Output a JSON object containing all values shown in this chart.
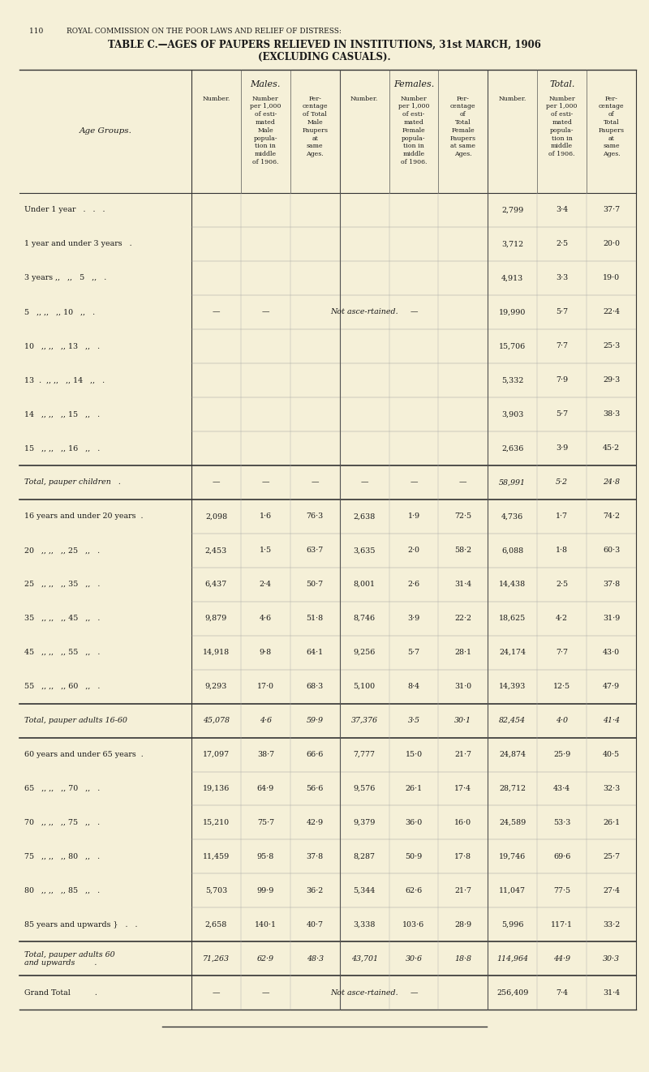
{
  "page_header": "110          ROYAL COMMISSION ON THE POOR LAWS AND RELIEF OF DISTRESS:",
  "title_line1": "TABLE C.—AGES OF PAUPERS RELIEVED IN INSTITUTIONS, 31st MARCH, 1906",
  "title_line2": "(EXCLUDING CASUALS).",
  "bg_color": "#f5f0d8",
  "text_color": "#1a1a1a",
  "col_header_males": "Males.",
  "col_header_females": "Females.",
  "col_header_total": "Total.",
  "age_group_col_header": "Age Groups.",
  "rows": [
    {
      "label": "Under 1 year   .   .   .",
      "m_num": "",
      "m_per1000": "",
      "m_pct": "",
      "f_num": "",
      "f_per1000": "",
      "f_pct": "",
      "t_num": "2,799",
      "t_per1000": "3·4",
      "t_pct": "37·7",
      "italic": false,
      "separator_before": false,
      "separator_after": false,
      "span_note": false
    },
    {
      "label": "1 year and under 3 years   .",
      "m_num": "",
      "m_per1000": "",
      "m_pct": "",
      "f_num": "",
      "f_per1000": "",
      "f_pct": "",
      "t_num": "3,712",
      "t_per1000": "2·5",
      "t_pct": "20·0",
      "italic": false,
      "separator_before": false,
      "separator_after": false,
      "span_note": false
    },
    {
      "label": "3 years ,,   ,,   5   ,,   .",
      "m_num": "",
      "m_per1000": "",
      "m_pct": "",
      "f_num": "",
      "f_per1000": "",
      "f_pct": "",
      "t_num": "4,913",
      "t_per1000": "3·3",
      "t_pct": "19·0",
      "italic": false,
      "separator_before": false,
      "separator_after": false,
      "span_note": false
    },
    {
      "label": "5   ,, ,,   ,, 10   ,,   .",
      "m_num": "—",
      "m_per1000": "—",
      "m_pct": "",
      "f_num": "—",
      "f_per1000": "—",
      "f_pct": "",
      "t_num": "19,990",
      "t_per1000": "5·7",
      "t_pct": "22·4",
      "italic": false,
      "separator_before": false,
      "separator_after": false,
      "span_note": true
    },
    {
      "label": "10   ,, ,,   ,, 13   ,,   .",
      "m_num": "",
      "m_per1000": "",
      "m_pct": "",
      "f_num": "",
      "f_per1000": "",
      "f_pct": "",
      "t_num": "15,706",
      "t_per1000": "7·7",
      "t_pct": "25·3",
      "italic": false,
      "separator_before": false,
      "separator_after": false,
      "span_note": false
    },
    {
      "label": "13  .  ,, ,,   ,, 14   ,,   .",
      "m_num": "",
      "m_per1000": "",
      "m_pct": "",
      "f_num": "",
      "f_per1000": "",
      "f_pct": "",
      "t_num": "5,332",
      "t_per1000": "7·9",
      "t_pct": "29·3",
      "italic": false,
      "separator_before": false,
      "separator_after": false,
      "span_note": false
    },
    {
      "label": "14   ,, ,,   ,, 15   ,,   .",
      "m_num": "",
      "m_per1000": "",
      "m_pct": "",
      "f_num": "",
      "f_per1000": "",
      "f_pct": "",
      "t_num": "3,903",
      "t_per1000": "5·7",
      "t_pct": "38·3",
      "italic": false,
      "separator_before": false,
      "separator_after": false,
      "span_note": false
    },
    {
      "label": "15   ,, ,,   ,, 16   ,,   .",
      "m_num": "",
      "m_per1000": "",
      "m_pct": "",
      "f_num": "",
      "f_per1000": "",
      "f_pct": "",
      "t_num": "2,636",
      "t_per1000": "3·9",
      "t_pct": "45·2",
      "italic": false,
      "separator_before": false,
      "separator_after": false,
      "span_note": false
    },
    {
      "label": "Total, pauper children   .",
      "m_num": "—",
      "m_per1000": "—",
      "m_pct": "—",
      "f_num": "—",
      "f_per1000": "—",
      "f_pct": "—",
      "t_num": "58,991",
      "t_per1000": "5·2",
      "t_pct": "24·8",
      "italic": true,
      "separator_before": true,
      "separator_after": true,
      "span_note": false
    },
    {
      "label": "16 years and under 20 years  .",
      "m_num": "2,098",
      "m_per1000": "1·6",
      "m_pct": "76·3",
      "f_num": "2,638",
      "f_per1000": "1·9",
      "f_pct": "72·5",
      "t_num": "4,736",
      "t_per1000": "1·7",
      "t_pct": "74·2",
      "italic": false,
      "separator_before": false,
      "separator_after": false,
      "span_note": false
    },
    {
      "label": "20   ,, ,,   ,, 25   ,,   .",
      "m_num": "2,453",
      "m_per1000": "1·5",
      "m_pct": "63·7",
      "f_num": "3,635",
      "f_per1000": "2·0",
      "f_pct": "58·2",
      "t_num": "6,088",
      "t_per1000": "1·8",
      "t_pct": "60·3",
      "italic": false,
      "separator_before": false,
      "separator_after": false,
      "span_note": false
    },
    {
      "label": "25   ,, ,,   ,, 35   ,,   .",
      "m_num": "6,437",
      "m_per1000": "2·4",
      "m_pct": "50·7",
      "f_num": "8,001",
      "f_per1000": "2·6",
      "f_pct": "31·4",
      "t_num": "14,438",
      "t_per1000": "2·5",
      "t_pct": "37·8",
      "italic": false,
      "separator_before": false,
      "separator_after": false,
      "span_note": false
    },
    {
      "label": "35   ,, ,,   ,, 45   ,,   .",
      "m_num": "9,879",
      "m_per1000": "4·6",
      "m_pct": "51·8",
      "f_num": "8,746",
      "f_per1000": "3·9",
      "f_pct": "22·2",
      "t_num": "18,625",
      "t_per1000": "4·2",
      "t_pct": "31·9",
      "italic": false,
      "separator_before": false,
      "separator_after": false,
      "span_note": false
    },
    {
      "label": "45   ,, ,,   ,, 55   ,,   .",
      "m_num": "14,918",
      "m_per1000": "9·8",
      "m_pct": "64·1",
      "f_num": "9,256",
      "f_per1000": "5·7",
      "f_pct": "28·1",
      "t_num": "24,174",
      "t_per1000": "7·7",
      "t_pct": "43·0",
      "italic": false,
      "separator_before": false,
      "separator_after": false,
      "span_note": false
    },
    {
      "label": "55   ,, ,,   ,, 60   ,,   .",
      "m_num": "9,293",
      "m_per1000": "17·0",
      "m_pct": "68·3",
      "f_num": "5,100",
      "f_per1000": "8·4",
      "f_pct": "31·0",
      "t_num": "14,393",
      "t_per1000": "12·5",
      "t_pct": "47·9",
      "italic": false,
      "separator_before": false,
      "separator_after": false,
      "span_note": false
    },
    {
      "label": "Total, pauper adults 16-60",
      "m_num": "45,078",
      "m_per1000": "4·6",
      "m_pct": "59·9",
      "f_num": "37,376",
      "f_per1000": "3·5",
      "f_pct": "30·1",
      "t_num": "82,454",
      "t_per1000": "4·0",
      "t_pct": "41·4",
      "italic": true,
      "separator_before": true,
      "separator_after": true,
      "span_note": false
    },
    {
      "label": "60 years and under 65 years  .",
      "m_num": "17,097",
      "m_per1000": "38·7",
      "m_pct": "66·6",
      "f_num": "7,777",
      "f_per1000": "15·0",
      "f_pct": "21·7",
      "t_num": "24,874",
      "t_per1000": "25·9",
      "t_pct": "40·5",
      "italic": false,
      "separator_before": false,
      "separator_after": false,
      "span_note": false
    },
    {
      "label": "65   ,, ,,   ,, 70   ,,   .",
      "m_num": "19,136",
      "m_per1000": "64·9",
      "m_pct": "56·6",
      "f_num": "9,576",
      "f_per1000": "26·1",
      "f_pct": "17·4",
      "t_num": "28,712",
      "t_per1000": "43·4",
      "t_pct": "32·3",
      "italic": false,
      "separator_before": false,
      "separator_after": false,
      "span_note": false
    },
    {
      "label": "70   ,, ,,   ,, 75   ,,   .",
      "m_num": "15,210",
      "m_per1000": "75·7",
      "m_pct": "42·9",
      "f_num": "9,379",
      "f_per1000": "36·0",
      "f_pct": "16·0",
      "t_num": "24,589",
      "t_per1000": "53·3",
      "t_pct": "26·1",
      "italic": false,
      "separator_before": false,
      "separator_after": false,
      "span_note": false
    },
    {
      "label": "75   ,, ,,   ,, 80   ,,   .",
      "m_num": "11,459",
      "m_per1000": "95·8",
      "m_pct": "37·8",
      "f_num": "8,287",
      "f_per1000": "50·9",
      "f_pct": "17·8",
      "t_num": "19,746",
      "t_per1000": "69·6",
      "t_pct": "25·7",
      "italic": false,
      "separator_before": false,
      "separator_after": false,
      "span_note": false
    },
    {
      "label": "80   ,, ,,   ,, 85   ,,   .",
      "m_num": "5,703",
      "m_per1000": "99·9",
      "m_pct": "36·2",
      "f_num": "5,344",
      "f_per1000": "62·6",
      "f_pct": "21·7",
      "t_num": "11,047",
      "t_per1000": "77·5",
      "t_pct": "27·4",
      "italic": false,
      "separator_before": false,
      "separator_after": false,
      "span_note": false
    },
    {
      "label": "85 years and upwards }   .   .",
      "m_num": "2,658",
      "m_per1000": "140·1",
      "m_pct": "40·7",
      "f_num": "3,338",
      "f_per1000": "103·6",
      "f_pct": "28·9",
      "t_num": "5,996",
      "t_per1000": "117·1",
      "t_pct": "33·2",
      "italic": false,
      "separator_before": false,
      "separator_after": false,
      "span_note": false
    },
    {
      "label": "Total, pauper adults 60\nand upwards        .",
      "m_num": "71,263",
      "m_per1000": "62·9",
      "m_pct": "48·3",
      "f_num": "43,701",
      "f_per1000": "30·6",
      "f_pct": "18·8",
      "t_num": "114,964",
      "t_per1000": "44·9",
      "t_pct": "30·3",
      "italic": true,
      "separator_before": true,
      "separator_after": true,
      "span_note": false
    },
    {
      "label": "Grand Total          .",
      "m_num": "—",
      "m_per1000": "—",
      "m_pct": "",
      "f_num": "—",
      "f_per1000": "—",
      "f_pct": "",
      "t_num": "256,409",
      "t_per1000": "7·4",
      "t_pct": "31·4",
      "italic": false,
      "separator_before": false,
      "separator_after": false,
      "span_note": true
    }
  ]
}
